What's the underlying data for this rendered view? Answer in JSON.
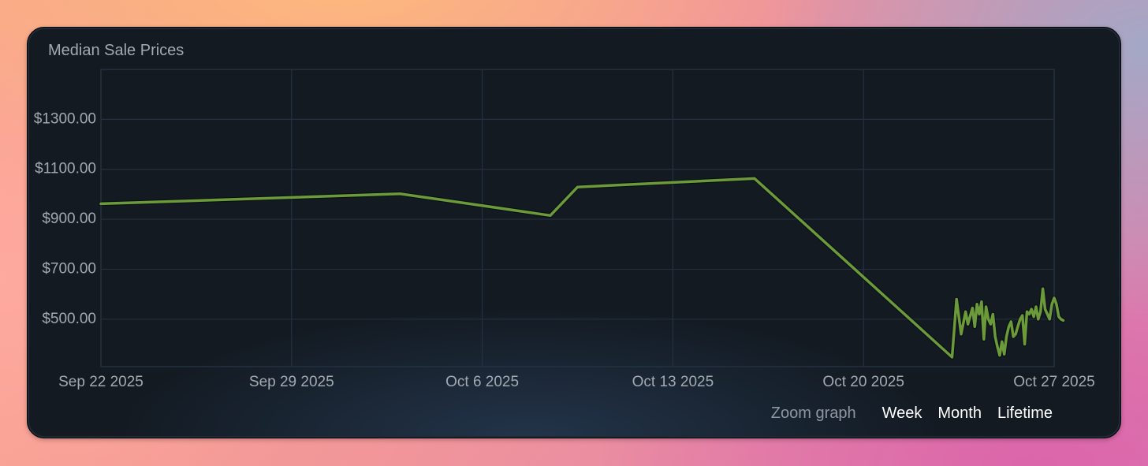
{
  "chart_data": {
    "type": "line",
    "title": "Median Sale Prices",
    "xlabel": "",
    "ylabel": "",
    "x_ticks": [
      "Sep 22 2025",
      "Sep 29 2025",
      "Oct 6 2025",
      "Oct 13 2025",
      "Oct 20 2025",
      "Oct 27 2025"
    ],
    "y_ticks": [
      "$1300.00",
      "$1100.00",
      "$900.00",
      "$700.00",
      "$500.00"
    ],
    "y_tick_values": [
      1300,
      1100,
      900,
      700,
      500
    ],
    "x_range": [
      "2025-09-22",
      "2025-10-27"
    ],
    "ylim": [
      310,
      1500
    ],
    "grid": true,
    "line_color": "#6b9a3a",
    "series": [
      {
        "name": "",
        "points": [
          [
            "2025-09-22T00:00",
            962
          ],
          [
            "2025-10-03T00:00",
            1002
          ],
          [
            "2025-10-08T12:00",
            915
          ],
          [
            "2025-10-09T12:00",
            1029
          ],
          [
            "2025-10-16T00:00",
            1063
          ],
          [
            "2025-10-23T06:00",
            348
          ],
          [
            "2025-10-23T10:00",
            580
          ],
          [
            "2025-10-23T14:00",
            440
          ],
          [
            "2025-10-23T18:00",
            530
          ],
          [
            "2025-10-23T20:00",
            480
          ],
          [
            "2025-10-24T00:00",
            545
          ],
          [
            "2025-10-24T02:00",
            470
          ],
          [
            "2025-10-24T04:00",
            560
          ],
          [
            "2025-10-24T06:00",
            520
          ],
          [
            "2025-10-24T08:00",
            570
          ],
          [
            "2025-10-24T10:00",
            420
          ],
          [
            "2025-10-24T12:00",
            550
          ],
          [
            "2025-10-24T14:00",
            500
          ],
          [
            "2025-10-24T16:00",
            480
          ],
          [
            "2025-10-24T18:00",
            520
          ],
          [
            "2025-10-24T20:00",
            430
          ],
          [
            "2025-10-24T22:00",
            390
          ],
          [
            "2025-10-25T00:00",
            355
          ],
          [
            "2025-10-25T02:00",
            410
          ],
          [
            "2025-10-25T04:00",
            360
          ],
          [
            "2025-10-25T06:00",
            430
          ],
          [
            "2025-10-25T08:00",
            470
          ],
          [
            "2025-10-25T10:00",
            490
          ],
          [
            "2025-10-25T12:00",
            430
          ],
          [
            "2025-10-25T14:00",
            440
          ],
          [
            "2025-10-25T16:00",
            470
          ],
          [
            "2025-10-25T18:00",
            500
          ],
          [
            "2025-10-25T20:00",
            515
          ],
          [
            "2025-10-25T22:00",
            400
          ],
          [
            "2025-10-26T00:00",
            530
          ],
          [
            "2025-10-26T02:00",
            520
          ],
          [
            "2025-10-26T04:00",
            540
          ],
          [
            "2025-10-26T06:00",
            510
          ],
          [
            "2025-10-26T08:00",
            550
          ],
          [
            "2025-10-26T10:00",
            500
          ],
          [
            "2025-10-26T12:00",
            530
          ],
          [
            "2025-10-26T14:00",
            622
          ],
          [
            "2025-10-26T16:00",
            540
          ],
          [
            "2025-10-26T18:00",
            520
          ],
          [
            "2025-10-26T20:00",
            500
          ],
          [
            "2025-10-26T22:00",
            560
          ],
          [
            "2025-10-27T00:00",
            585
          ],
          [
            "2025-10-27T02:00",
            560
          ],
          [
            "2025-10-27T04:00",
            510
          ],
          [
            "2025-10-27T06:00",
            500
          ],
          [
            "2025-10-27T08:00",
            495
          ]
        ]
      }
    ]
  },
  "zoom": {
    "label": "Zoom graph",
    "options": [
      "Week",
      "Month",
      "Lifetime"
    ]
  }
}
